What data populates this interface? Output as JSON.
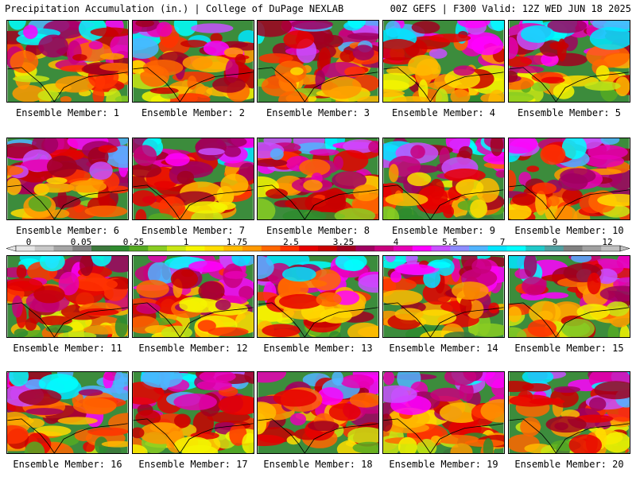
{
  "header": {
    "left": "Precipitation Accumulation (in.) | College of DuPage NEXLAB",
    "right": "00Z GEFS | F300 Valid: 12Z WED JUN 18 2025"
  },
  "member_label_prefix": "Ensemble Member: ",
  "members": [
    {
      "id": 1,
      "label": "Ensemble Member: 1"
    },
    {
      "id": 2,
      "label": "Ensemble Member: 2"
    },
    {
      "id": 3,
      "label": "Ensemble Member: 3"
    },
    {
      "id": 4,
      "label": "Ensemble Member: 4"
    },
    {
      "id": 5,
      "label": "Ensemble Member: 5"
    },
    {
      "id": 6,
      "label": "Ensemble Member: 6"
    },
    {
      "id": 7,
      "label": "Ensemble Member: 7"
    },
    {
      "id": 8,
      "label": "Ensemble Member: 8"
    },
    {
      "id": 9,
      "label": "Ensemble Member: 9"
    },
    {
      "id": 10,
      "label": "Ensemble Member: 10"
    },
    {
      "id": 11,
      "label": "Ensemble Member: 11"
    },
    {
      "id": 12,
      "label": "Ensemble Member: 12"
    },
    {
      "id": 13,
      "label": "Ensemble Member: 13"
    },
    {
      "id": 14,
      "label": "Ensemble Member: 14"
    },
    {
      "id": 15,
      "label": "Ensemble Member: 15"
    },
    {
      "id": 16,
      "label": "Ensemble Member: 16"
    },
    {
      "id": 17,
      "label": "Ensemble Member: 17"
    },
    {
      "id": 18,
      "label": "Ensemble Member: 18"
    },
    {
      "id": 19,
      "label": "Ensemble Member: 19"
    },
    {
      "id": 20,
      "label": "Ensemble Member: 20"
    }
  ],
  "colorbar": {
    "labels": [
      "0",
      "0.05",
      "0.25",
      "1",
      "1.75",
      "2.5",
      "3.25",
      "4",
      "5.5",
      "7",
      "9",
      "12"
    ],
    "colors": [
      "#e6e6e6",
      "#c8c8c8",
      "#a5a5a5",
      "#828282",
      "#3c783c",
      "#2e8b2e",
      "#55aa22",
      "#88cc22",
      "#c8e614",
      "#f5f500",
      "#ffdd00",
      "#ffbb00",
      "#ff9900",
      "#ff6600",
      "#ff3300",
      "#e60000",
      "#c80000",
      "#a00020",
      "#a00060",
      "#c8007d",
      "#e600b4",
      "#ff00ff",
      "#c850ff",
      "#8c8cff",
      "#50b4ff",
      "#00e6ff",
      "#00ffff",
      "#20c8c8",
      "#50a0a0",
      "#808080",
      "#a0a0a0",
      "#c0c0c0"
    ]
  },
  "colors": {
    "background": "#ffffff",
    "land_low": "#2e8b2e",
    "coast_line": "#000000"
  }
}
